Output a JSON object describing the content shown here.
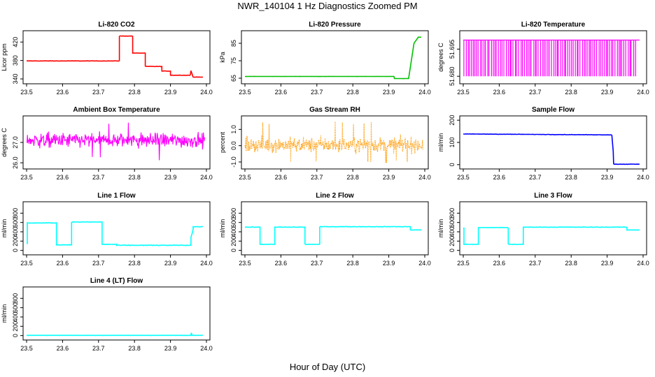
{
  "title": "NWR_140104  1 Hz Diagnostics Zoomed PM",
  "xlabel": "Hour of Day (UTC)",
  "chart_data": [
    {
      "id": "co2",
      "type": "line",
      "title": "Li-820 CO2",
      "ylabel": "Licor ppm",
      "color": "#ff0000",
      "xlim": [
        23.5,
        24.0
      ],
      "ylim": [
        334,
        440
      ],
      "yticks": [
        340,
        380,
        420
      ],
      "xticks": [
        23.5,
        23.6,
        23.7,
        23.8,
        23.9,
        24.0
      ],
      "noise": 0.6,
      "x": [
        23.5,
        23.758,
        23.758,
        23.795,
        23.795,
        23.83,
        23.83,
        23.876,
        23.876,
        23.9,
        23.9,
        23.955,
        23.957,
        23.962,
        23.962,
        23.99
      ],
      "y": [
        379,
        379,
        433,
        433,
        396,
        396,
        367,
        367,
        357,
        357,
        348,
        348,
        358,
        346,
        344,
        344
      ]
    },
    {
      "id": "pressure",
      "type": "line",
      "title": "Li-820 Pressure",
      "ylabel": "kPa",
      "color": "#00c000",
      "xlim": [
        23.5,
        24.0
      ],
      "ylim": [
        63,
        91
      ],
      "yticks": [
        65,
        75,
        85
      ],
      "xticks": [
        23.5,
        23.6,
        23.7,
        23.8,
        23.9,
        24.0
      ],
      "noise": 0.05,
      "x": [
        23.5,
        23.915,
        23.915,
        23.955,
        23.97,
        23.982,
        23.99
      ],
      "y": [
        66,
        66,
        64.8,
        64.8,
        85,
        88.5,
        88.5
      ]
    },
    {
      "id": "licor_temp",
      "type": "spikes",
      "title": "Li-820 Temperature",
      "ylabel": "degrees C",
      "color": "#ff00ff",
      "xlim": [
        23.5,
        24.0
      ],
      "ylim": [
        51.677,
        51.704
      ],
      "yticks": [
        51.68,
        51.695
      ],
      "ytick_labels": [
        "51.680",
        "51.695"
      ],
      "xticks": [
        23.5,
        23.6,
        23.7,
        23.8,
        23.9,
        24.0
      ],
      "low": 51.68,
      "high": 51.7,
      "spike_count": 95
    },
    {
      "id": "box_temp",
      "type": "noise",
      "title": "Ambient Box Temperature",
      "ylabel": "degrees C",
      "color": "#ff00ff",
      "xlim": [
        23.5,
        24.0
      ],
      "ylim": [
        25.8,
        28.2
      ],
      "yticks": [
        26.0,
        27.0
      ],
      "ytick_labels": [
        "26.0",
        "27.0"
      ],
      "xticks": [
        23.5,
        23.6,
        23.7,
        23.8,
        23.9,
        24.0
      ],
      "center": 27.1,
      "spread": 0.28,
      "spike_min": 26.1,
      "spike_max": 28.0
    },
    {
      "id": "rh",
      "type": "noise",
      "title": "Gas Stream RH",
      "ylabel": "percent",
      "color": "#ff9900",
      "xlim": [
        23.5,
        24.0
      ],
      "ylim": [
        -1.3,
        1.7
      ],
      "yticks": [
        -1.0,
        0.0,
        1.0
      ],
      "ytick_labels": [
        "-1.0",
        "0.0",
        "1.0"
      ],
      "xticks": [
        23.5,
        23.6,
        23.7,
        23.8,
        23.9,
        24.0
      ],
      "center": 0.05,
      "spread": 0.35,
      "spike_min": -1.1,
      "spike_max": 1.5,
      "dotted": true
    },
    {
      "id": "sample_flow",
      "type": "line",
      "title": "Sample Flow",
      "ylabel": "ml/min",
      "color": "#0000ff",
      "xlim": [
        23.5,
        24.0
      ],
      "ylim": [
        -10,
        210
      ],
      "yticks": [
        0,
        100,
        200
      ],
      "xticks": [
        23.5,
        23.6,
        23.7,
        23.8,
        23.9,
        24.0
      ],
      "noise": 1.2,
      "x": [
        23.5,
        23.913,
        23.913,
        23.917,
        23.918,
        23.99
      ],
      "y": [
        138,
        134,
        134,
        60,
        2,
        2
      ]
    },
    {
      "id": "line1",
      "type": "line",
      "title": "Line 1 Flow",
      "ylabel": "ml/min",
      "color": "#00ffff",
      "xlim": [
        23.5,
        24.0
      ],
      "ylim": [
        -50,
        1000
      ],
      "yticks": [
        0,
        200,
        400,
        600,
        800
      ],
      "xticks": [
        23.5,
        23.6,
        23.7,
        23.8,
        23.9,
        24.0
      ],
      "noise": 10,
      "x": [
        23.5,
        23.502,
        23.502,
        23.583,
        23.583,
        23.625,
        23.625,
        23.71,
        23.71,
        23.75,
        23.75,
        23.957,
        23.957,
        23.963,
        23.963,
        23.99
      ],
      "y": [
        150,
        150,
        590,
        590,
        120,
        120,
        610,
        610,
        130,
        130,
        110,
        110,
        280,
        450,
        510,
        510
      ]
    },
    {
      "id": "line2",
      "type": "line",
      "title": "Line 2 Flow",
      "ylabel": "ml/min",
      "color": "#00ffff",
      "xlim": [
        23.5,
        24.0
      ],
      "ylim": [
        -50,
        1000
      ],
      "yticks": [
        0,
        200,
        400,
        600,
        800
      ],
      "xticks": [
        23.5,
        23.6,
        23.7,
        23.8,
        23.9,
        24.0
      ],
      "noise": 8,
      "x": [
        23.5,
        23.542,
        23.542,
        23.583,
        23.583,
        23.667,
        23.667,
        23.708,
        23.708,
        23.96,
        23.96,
        23.99
      ],
      "y": [
        500,
        500,
        130,
        130,
        500,
        500,
        130,
        130,
        510,
        510,
        440,
        440
      ]
    },
    {
      "id": "line3",
      "type": "line",
      "title": "Line 3 Flow",
      "ylabel": "ml/min",
      "color": "#00ffff",
      "xlim": [
        23.5,
        24.0
      ],
      "ylim": [
        -50,
        1000
      ],
      "yticks": [
        0,
        200,
        400,
        600,
        800
      ],
      "xticks": [
        23.5,
        23.6,
        23.7,
        23.8,
        23.9,
        24.0
      ],
      "noise": 8,
      "x": [
        23.5,
        23.502,
        23.502,
        23.542,
        23.542,
        23.625,
        23.625,
        23.667,
        23.667,
        23.955,
        23.955,
        23.99
      ],
      "y": [
        480,
        480,
        130,
        130,
        490,
        490,
        130,
        130,
        500,
        500,
        440,
        440
      ]
    },
    {
      "id": "line4",
      "type": "line",
      "title": "Line 4 (LT) Flow",
      "ylabel": "ml/min",
      "color": "#00ffff",
      "xlim": [
        23.5,
        24.0
      ],
      "ylim": [
        -50,
        1000
      ],
      "yticks": [
        0,
        200,
        400,
        600,
        800
      ],
      "xticks": [
        23.5,
        23.6,
        23.7,
        23.8,
        23.9,
        24.0
      ],
      "noise": 1,
      "x": [
        23.5,
        23.957,
        23.958,
        23.96,
        23.962,
        23.99
      ],
      "y": [
        5,
        5,
        60,
        5,
        5,
        5
      ]
    }
  ]
}
